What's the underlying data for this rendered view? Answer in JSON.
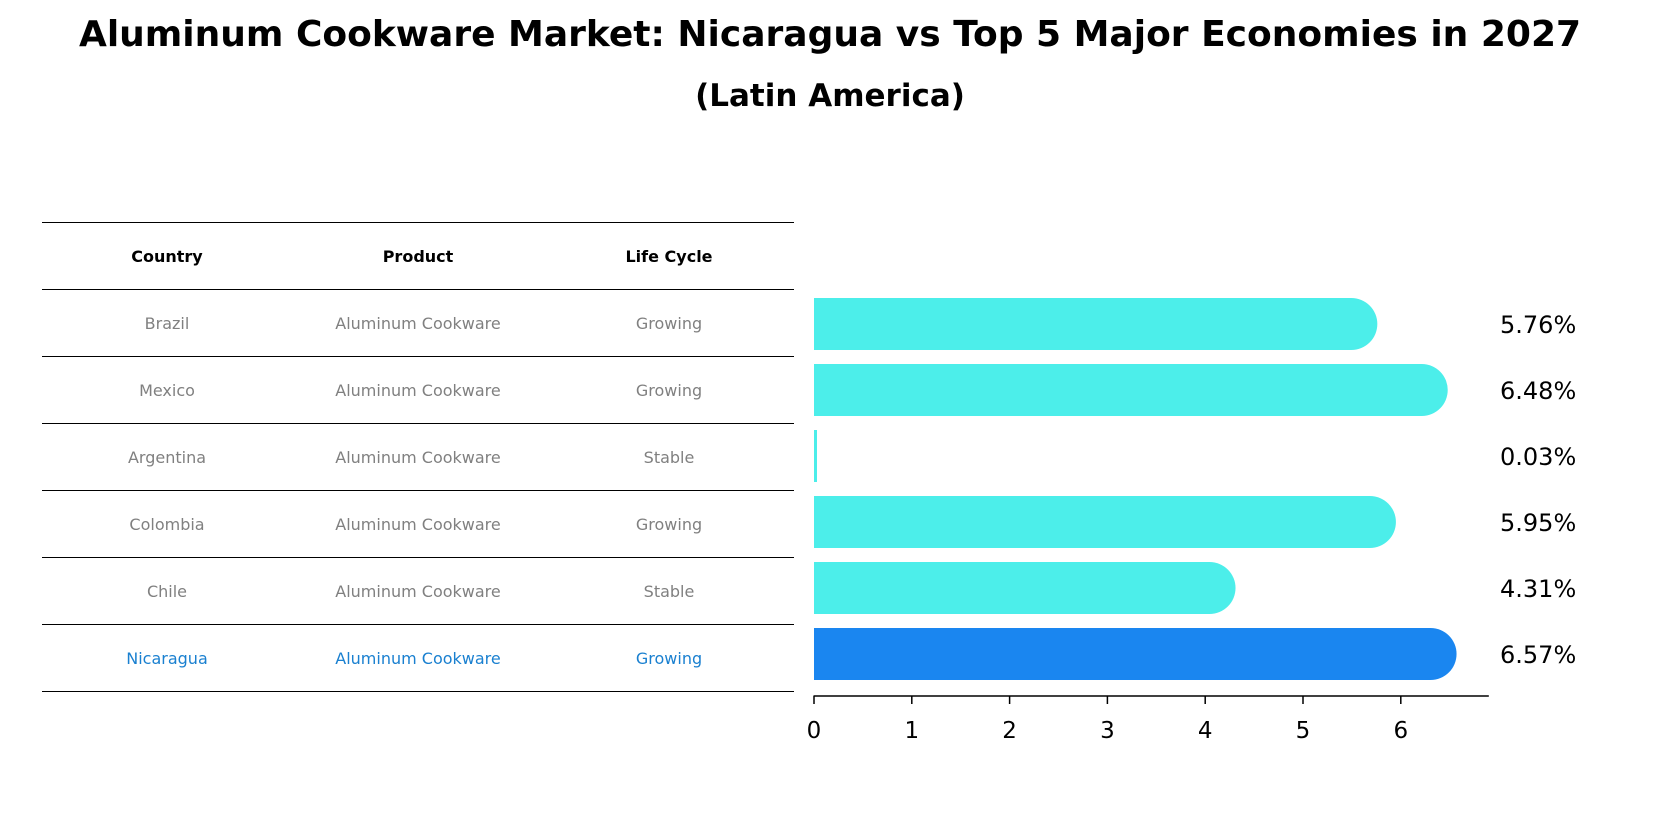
{
  "title": "Aluminum Cookware Market: Nicaragua vs Top 5 Major Economies in 2027",
  "subtitle": "(Latin America)",
  "table": {
    "headers": [
      "Country",
      "Product",
      "Life Cycle"
    ],
    "rows": [
      {
        "country": "Brazil",
        "product": "Aluminum Cookware",
        "life_cycle": "Growing"
      },
      {
        "country": "Mexico",
        "product": "Aluminum Cookware",
        "life_cycle": "Growing"
      },
      {
        "country": "Argentina",
        "product": "Aluminum Cookware",
        "life_cycle": "Stable"
      },
      {
        "country": "Colombia",
        "product": "Aluminum Cookware",
        "life_cycle": "Growing"
      },
      {
        "country": "Chile",
        "product": "Aluminum Cookware",
        "life_cycle": "Stable"
      },
      {
        "country": "Nicaragua",
        "product": "Aluminum Cookware",
        "life_cycle": "Growing"
      }
    ]
  },
  "chart_data": {
    "type": "bar",
    "orientation": "horizontal",
    "title": "Aluminum Cookware Market: Nicaragua vs Top 5 Major Economies in 2027",
    "subtitle": "(Latin America)",
    "categories": [
      "Brazil",
      "Mexico",
      "Argentina",
      "Colombia",
      "Chile",
      "Nicaragua"
    ],
    "values": [
      5.76,
      6.48,
      0.03,
      5.95,
      4.31,
      6.57
    ],
    "value_labels": [
      "5.76%",
      "6.48%",
      "0.03%",
      "5.95%",
      "4.31%",
      "6.57%"
    ],
    "x_ticks": [
      "0",
      "1",
      "2",
      "3",
      "4",
      "5",
      "6"
    ],
    "xlim": [
      0,
      6.9
    ],
    "grid": false,
    "highlight": "Nicaragua",
    "colors": {
      "default": "#4ceeea",
      "highlight": "#1a86f0"
    }
  }
}
